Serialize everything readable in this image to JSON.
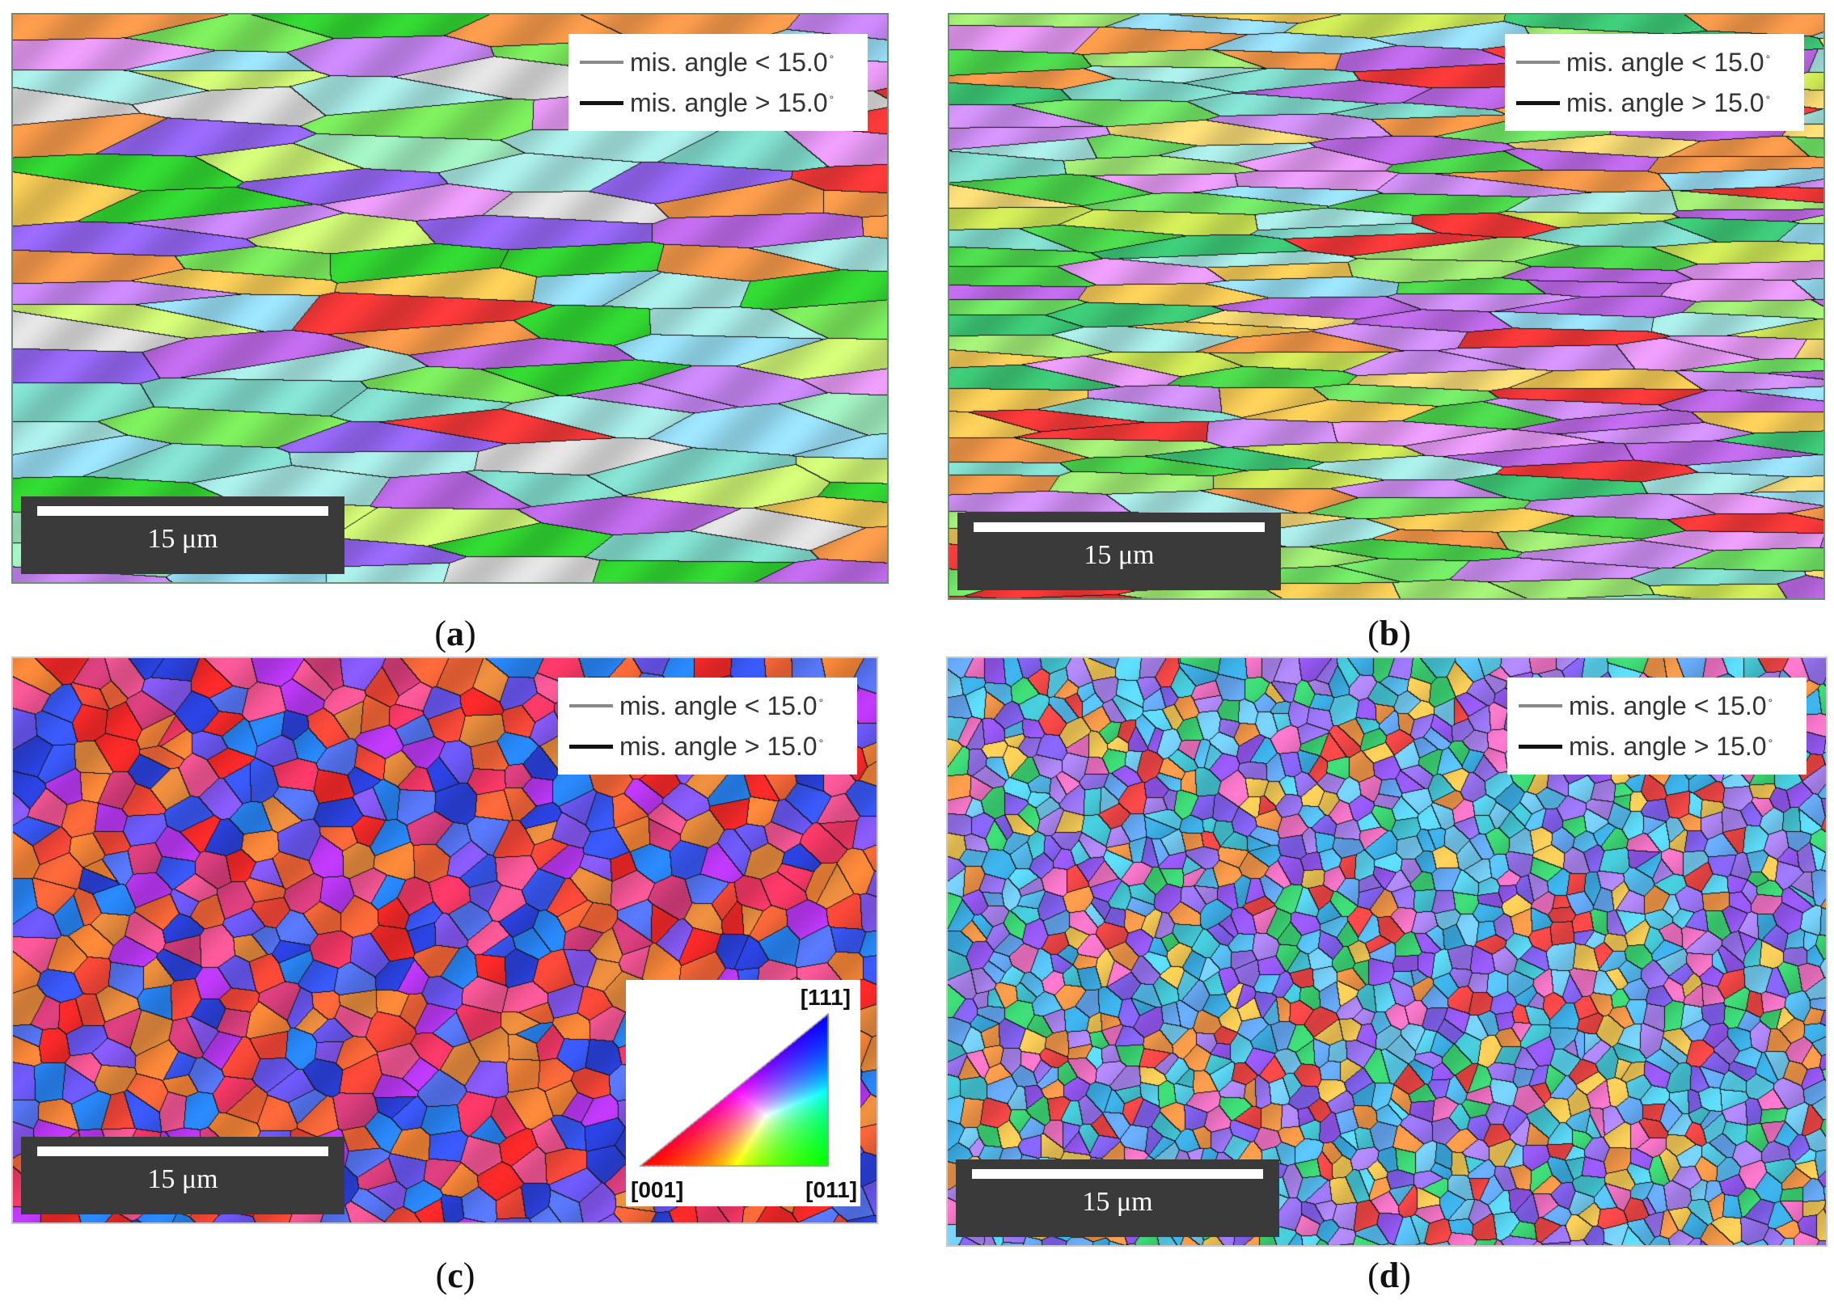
{
  "panels": [
    {
      "id": "a",
      "caption": "a",
      "legend": {
        "low": "mis. angle < 15.0",
        "high": "mis. angle > 15.0",
        "degree": "°"
      },
      "scale_bar": "15 μm",
      "palette": [
        "#9c6bff",
        "#d08cff",
        "#c66ef2",
        "#33dd33",
        "#7ff25f",
        "#a6f7c6",
        "#aef2ee",
        "#87e6d6",
        "#f0a0ff",
        "#e6e6e6",
        "#ff3a3a",
        "#ff9f4d",
        "#ffd35a",
        "#9ee7ff",
        "#d7ff7a"
      ],
      "grain_style": "elongated"
    },
    {
      "id": "b",
      "caption": "b",
      "legend": {
        "low": "mis. angle < 15.0",
        "high": "mis. angle > 15.0",
        "degree": "°"
      },
      "scale_bar": "15 μm",
      "palette": [
        "#4fe04f",
        "#77f06b",
        "#a8f57a",
        "#d6f05a",
        "#87e6d6",
        "#aef2ee",
        "#c66ef2",
        "#d896ff",
        "#ff9f4d",
        "#ffd35a",
        "#ff3a3a",
        "#f0a0ff",
        "#9ee7ff",
        "#3fd07b",
        "#ffe27a"
      ],
      "grain_style": "banded"
    },
    {
      "id": "c",
      "caption": "c",
      "legend": {
        "low": "mis. angle < 15.0",
        "high": "mis. angle > 15.0",
        "degree": "°"
      },
      "scale_bar": "15 μm",
      "palette": [
        "#2c44e6",
        "#3b5bff",
        "#5a7aff",
        "#6f5bff",
        "#8b5cff",
        "#ff2a2a",
        "#ff4a3a",
        "#ff6a3a",
        "#ff8a3a",
        "#ff5a9a",
        "#ff3a6a",
        "#2a8aff",
        "#c23aff",
        "#f09040",
        "#e04080"
      ],
      "grain_style": "equiaxed"
    },
    {
      "id": "d",
      "caption": "d",
      "legend": {
        "low": "mis. angle < 15.0",
        "high": "mis. angle > 15.0",
        "degree": "°"
      },
      "scale_bar": "15 μm",
      "palette": [
        "#5bc8ff",
        "#3fb6f0",
        "#7ad6ff",
        "#8a68ff",
        "#9c5cff",
        "#a07aff",
        "#b58cff",
        "#48d0e0",
        "#5fe0ff",
        "#ffd35a",
        "#ff9f4d",
        "#3fe07a",
        "#ff4a4a",
        "#ff7ad0",
        "#6ab0ff"
      ],
      "grain_style": "fine"
    }
  ],
  "ipf_key": {
    "top": "[111]",
    "left": "[001]",
    "right": "[011]"
  }
}
